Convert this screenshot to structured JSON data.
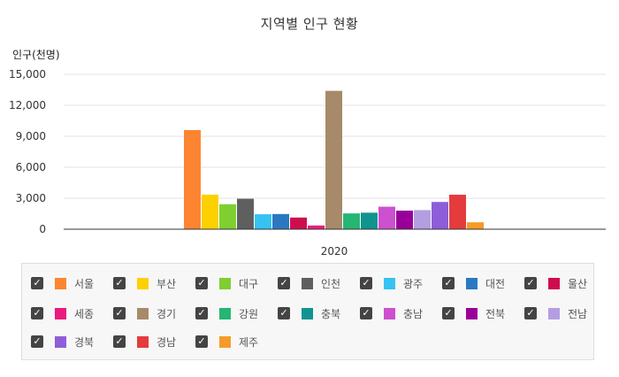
{
  "chart_data": {
    "type": "bar",
    "title": "지역별 인구 현황",
    "ylabel": "인구(천명)",
    "xlabel": "",
    "categories": [
      "2020"
    ],
    "ylim": [
      0,
      15000
    ],
    "yticks": [
      "15,000",
      "12,000",
      "9,000",
      "6,000",
      "3,000",
      "0"
    ],
    "grid": true,
    "legend_position": "bottom",
    "series": [
      {
        "name": "서울",
        "color": "#fd8531",
        "values": [
          9600
        ]
      },
      {
        "name": "부산",
        "color": "#fdd000",
        "values": [
          3350
        ]
      },
      {
        "name": "대구",
        "color": "#7fcf30",
        "values": [
          2420
        ]
      },
      {
        "name": "인천",
        "color": "#5f5f5f",
        "values": [
          2950
        ]
      },
      {
        "name": "광주",
        "color": "#37c2f2",
        "values": [
          1450
        ]
      },
      {
        "name": "대전",
        "color": "#2b78c2",
        "values": [
          1470
        ]
      },
      {
        "name": "울산",
        "color": "#cf0d4c",
        "values": [
          1130
        ]
      },
      {
        "name": "세종",
        "color": "#ec1a7e",
        "values": [
          360
        ]
      },
      {
        "name": "경기",
        "color": "#a68a6a",
        "values": [
          13400
        ]
      },
      {
        "name": "강원",
        "color": "#25b673",
        "values": [
          1530
        ]
      },
      {
        "name": "충북",
        "color": "#10948f",
        "values": [
          1600
        ]
      },
      {
        "name": "충남",
        "color": "#cc50cf",
        "values": [
          2180
        ]
      },
      {
        "name": "전북",
        "color": "#990099",
        "values": [
          1800
        ]
      },
      {
        "name": "전남",
        "color": "#b39ee2",
        "values": [
          1850
        ]
      },
      {
        "name": "경북",
        "color": "#8e5ed8",
        "values": [
          2640
        ]
      },
      {
        "name": "경남",
        "color": "#e43c3c",
        "values": [
          3340
        ]
      },
      {
        "name": "제주",
        "color": "#f59b2a",
        "values": [
          670
        ]
      }
    ]
  },
  "legend": {
    "check_mark": "✓"
  }
}
